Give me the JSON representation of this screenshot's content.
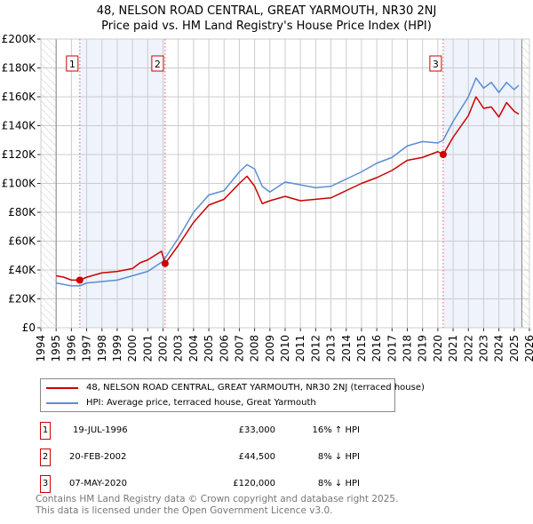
{
  "title": [
    "48, NELSON ROAD CENTRAL, GREAT YARMOUTH, NR30 2NJ",
    "Price paid vs. HM Land Registry's House Price Index (HPI)"
  ],
  "colors": {
    "property": "#cc0000",
    "hpi": "#5b8dd4",
    "shade": "#eef3fc"
  },
  "chart_data": {
    "type": "line",
    "xlim": [
      1994,
      2026
    ],
    "ylim": [
      0,
      200000
    ],
    "xticks": [
      "1994",
      "1995",
      "1996",
      "1997",
      "1998",
      "1999",
      "2000",
      "2001",
      "2002",
      "2003",
      "2004",
      "2005",
      "2006",
      "2007",
      "2008",
      "2009",
      "2010",
      "2011",
      "2012",
      "2013",
      "2014",
      "2015",
      "2016",
      "2017",
      "2018",
      "2019",
      "2020",
      "2021",
      "2022",
      "2023",
      "2024",
      "2025",
      "2026"
    ],
    "yticks": [
      {
        "v": 0,
        "label": "£0"
      },
      {
        "v": 20000,
        "label": "£20K"
      },
      {
        "v": 40000,
        "label": "£40K"
      },
      {
        "v": 60000,
        "label": "£60K"
      },
      {
        "v": 80000,
        "label": "£80K"
      },
      {
        "v": 100000,
        "label": "£100K"
      },
      {
        "v": 120000,
        "label": "£120K"
      },
      {
        "v": 140000,
        "label": "£140K"
      },
      {
        "v": 160000,
        "label": "£160K"
      },
      {
        "v": 180000,
        "label": "£180K"
      },
      {
        "v": 200000,
        "label": "£200K"
      }
    ],
    "series": [
      {
        "name": "48, NELSON ROAD CENTRAL, GREAT YARMOUTH, NR30 2NJ (terraced house)",
        "color": "#cc0000",
        "x": [
          1995,
          1995.5,
          1996,
          1996.55,
          1997,
          1998,
          1999,
          2000,
          2000.5,
          2001,
          2001.9,
          2002.14,
          2003,
          2004,
          2005,
          2006,
          2007,
          2007.5,
          2008,
          2008.5,
          2009,
          2010,
          2011,
          2012,
          2013,
          2014,
          2015,
          2016,
          2017,
          2018,
          2019,
          2020,
          2020.35,
          2021,
          2022,
          2022.5,
          2023,
          2023.5,
          2024,
          2024.5,
          2025,
          2025.3
        ],
        "y": [
          36000,
          35000,
          33000,
          33000,
          35000,
          38000,
          39000,
          41000,
          45000,
          47000,
          53000,
          44500,
          57000,
          73000,
          85000,
          89000,
          100000,
          105000,
          98000,
          86000,
          88000,
          91000,
          88000,
          89000,
          90000,
          95000,
          100000,
          104000,
          109000,
          116000,
          118000,
          122000,
          120000,
          132000,
          147000,
          160000,
          152000,
          153000,
          146000,
          156000,
          150000,
          148000
        ]
      },
      {
        "name": "HPI: Average price, terraced house, Great Yarmouth",
        "color": "#5b8dd4",
        "x": [
          1995,
          1995.5,
          1996,
          1996.55,
          1997,
          1998,
          1999,
          2000,
          2001,
          2002,
          2003,
          2004,
          2005,
          2006,
          2007,
          2007.5,
          2008,
          2008.5,
          2009,
          2010,
          2011,
          2012,
          2013,
          2014,
          2015,
          2016,
          2017,
          2018,
          2019,
          2020,
          2020.35,
          2021,
          2022,
          2022.5,
          2023,
          2023.5,
          2024,
          2024.5,
          2025,
          2025.3
        ],
        "y": [
          31000,
          30000,
          29000,
          29000,
          31000,
          32000,
          33000,
          36000,
          39000,
          46000,
          62000,
          80000,
          92000,
          95000,
          108000,
          113000,
          110000,
          98000,
          94000,
          101000,
          99000,
          97000,
          98000,
          103000,
          108000,
          114000,
          118000,
          126000,
          129000,
          128000,
          130000,
          143000,
          160000,
          173000,
          166000,
          170000,
          163000,
          170000,
          165000,
          168000
        ]
      }
    ],
    "sales": [
      {
        "n": "1",
        "date": "19-JUL-1996",
        "x": 1996.55,
        "price": "£33,000",
        "value": 33000,
        "hpi": "16% ↑ HPI"
      },
      {
        "n": "2",
        "date": "20-FEB-2002",
        "x": 2002.14,
        "price": "£44,500",
        "value": 44500,
        "hpi": "8% ↓ HPI"
      },
      {
        "n": "3",
        "date": "07-MAY-2020",
        "x": 2020.35,
        "price": "£120,000",
        "value": 120000,
        "hpi": "8% ↓ HPI"
      }
    ],
    "data_end": 2025.5
  },
  "legend": [
    "48, NELSON ROAD CENTRAL, GREAT YARMOUTH, NR30 2NJ (terraced house)",
    "HPI: Average price, terraced house, Great Yarmouth"
  ],
  "footer": [
    "Contains HM Land Registry data © Crown copyright and database right 2025.",
    "This data is licensed under the Open Government Licence v3.0."
  ]
}
